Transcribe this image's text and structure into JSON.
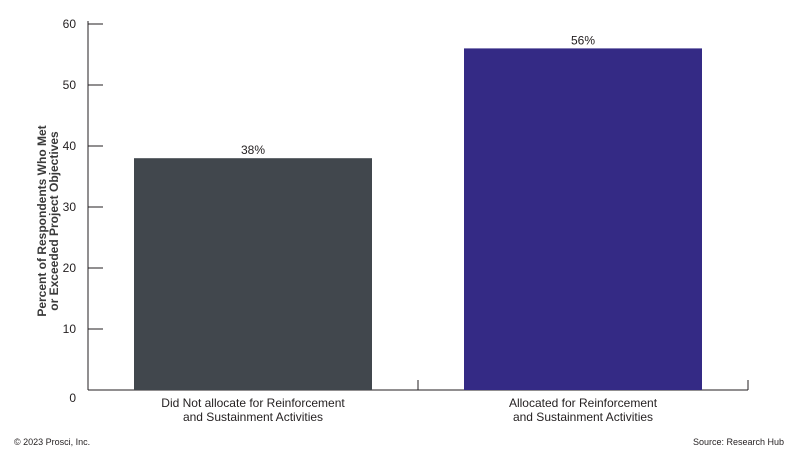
{
  "chart_data": {
    "type": "bar",
    "categories": [
      [
        "Did Not allocate for Reinforcement",
        "and Sustainment Activities"
      ],
      [
        "Allocated for Reinforcement",
        "and Sustainment Activities"
      ]
    ],
    "values": [
      38,
      56
    ],
    "data_labels": [
      "38%",
      "56%"
    ],
    "colors": [
      "#41474d",
      "#342a85"
    ],
    "ylabel": [
      "Percent of Respondents Who Met",
      "or Exceeded Project Objectives"
    ],
    "xlabel": "",
    "ylim": [
      0,
      60
    ],
    "yticks": [
      0,
      10,
      20,
      30,
      40,
      50,
      60
    ],
    "grid": false,
    "legend": "none"
  },
  "footer": {
    "copyright": "© 2023 Prosci, Inc.",
    "source": "Source: Research Hub"
  }
}
